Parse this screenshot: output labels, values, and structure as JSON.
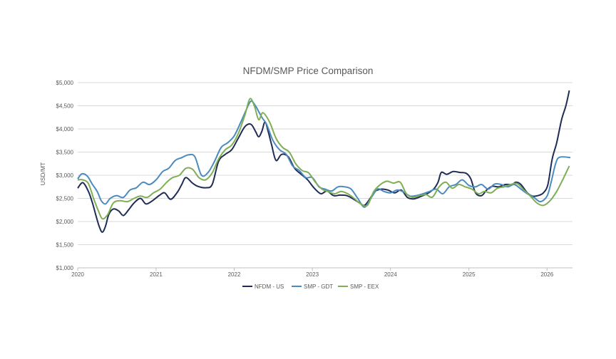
{
  "chart_data": {
    "type": "line",
    "title": "NFDM/SMP Price Comparison",
    "xlabel": "",
    "ylabel": "USD/MT",
    "ylim": [
      1000,
      5000
    ],
    "yticks": [
      1000,
      1500,
      2000,
      2500,
      3000,
      3500,
      4000,
      4500,
      5000
    ],
    "ytick_labels": [
      "$1,000",
      "$1,500",
      "$2,000",
      "$2,500",
      "$3,000",
      "$3,500",
      "$4,000",
      "$4,500",
      "$5,000"
    ],
    "xlim": [
      "2020-01-01",
      "2026-04-30"
    ],
    "xticks": [
      "2020-01-01",
      "2021-01-01",
      "2022-01-01",
      "2023-01-01",
      "2024-01-01",
      "2025-01-01",
      "2026-01-01"
    ],
    "xtick_labels": [
      "2020",
      "2021",
      "2022",
      "2023",
      "2024",
      "2025",
      "2026"
    ],
    "grid": "horizontal",
    "legend": "bottom-center",
    "series": [
      {
        "name": "NFDM - US",
        "color": "#1f2d56",
        "points": [
          [
            "2020-01-01",
            2720
          ],
          [
            "2020-01-25",
            2840
          ],
          [
            "2020-02-20",
            2650
          ],
          [
            "2020-03-10",
            2400
          ],
          [
            "2020-03-25",
            2150
          ],
          [
            "2020-04-10",
            1900
          ],
          [
            "2020-04-25",
            1770
          ],
          [
            "2020-05-10",
            1900
          ],
          [
            "2020-05-25",
            2150
          ],
          [
            "2020-06-15",
            2270
          ],
          [
            "2020-07-10",
            2230
          ],
          [
            "2020-08-01",
            2130
          ],
          [
            "2020-08-25",
            2250
          ],
          [
            "2020-09-20",
            2400
          ],
          [
            "2020-10-20",
            2500
          ],
          [
            "2020-11-15",
            2380
          ],
          [
            "2020-12-15",
            2450
          ],
          [
            "2021-01-15",
            2560
          ],
          [
            "2021-02-10",
            2620
          ],
          [
            "2021-03-10",
            2480
          ],
          [
            "2021-04-10",
            2630
          ],
          [
            "2021-05-01",
            2800
          ],
          [
            "2021-05-20",
            2950
          ],
          [
            "2021-06-20",
            2830
          ],
          [
            "2021-07-15",
            2760
          ],
          [
            "2021-08-20",
            2730
          ],
          [
            "2021-09-20",
            2800
          ],
          [
            "2021-10-20",
            3300
          ],
          [
            "2021-11-20",
            3450
          ],
          [
            "2021-12-20",
            3550
          ],
          [
            "2022-01-20",
            3800
          ],
          [
            "2022-02-20",
            4050
          ],
          [
            "2022-03-20",
            4100
          ],
          [
            "2022-04-10",
            3950
          ],
          [
            "2022-04-25",
            3830
          ],
          [
            "2022-05-10",
            3950
          ],
          [
            "2022-05-25",
            4150
          ],
          [
            "2022-06-10",
            3920
          ],
          [
            "2022-06-25",
            3650
          ],
          [
            "2022-07-15",
            3320
          ],
          [
            "2022-08-10",
            3450
          ],
          [
            "2022-09-10",
            3400
          ],
          [
            "2022-10-10",
            3150
          ],
          [
            "2022-11-10",
            3020
          ],
          [
            "2022-12-10",
            2900
          ],
          [
            "2023-01-10",
            2720
          ],
          [
            "2023-02-10",
            2600
          ],
          [
            "2023-03-10",
            2660
          ],
          [
            "2023-04-10",
            2560
          ],
          [
            "2023-05-10",
            2570
          ],
          [
            "2023-06-10",
            2560
          ],
          [
            "2023-07-10",
            2490
          ],
          [
            "2023-08-10",
            2400
          ],
          [
            "2023-09-01",
            2350
          ],
          [
            "2023-09-25",
            2480
          ],
          [
            "2023-10-20",
            2650
          ],
          [
            "2023-11-20",
            2700
          ],
          [
            "2023-12-20",
            2680
          ],
          [
            "2024-01-20",
            2620
          ],
          [
            "2024-02-20",
            2680
          ],
          [
            "2024-03-20",
            2520
          ],
          [
            "2024-04-20",
            2490
          ],
          [
            "2024-05-20",
            2540
          ],
          [
            "2024-06-20",
            2600
          ],
          [
            "2024-07-20",
            2700
          ],
          [
            "2024-08-10",
            2850
          ],
          [
            "2024-08-25",
            3060
          ],
          [
            "2024-09-20",
            3020
          ],
          [
            "2024-10-20",
            3080
          ],
          [
            "2024-11-20",
            3060
          ],
          [
            "2024-12-20",
            3040
          ],
          [
            "2025-01-10",
            2920
          ],
          [
            "2025-02-01",
            2620
          ],
          [
            "2025-03-01",
            2560
          ],
          [
            "2025-03-25",
            2680
          ],
          [
            "2025-04-20",
            2760
          ],
          [
            "2025-05-20",
            2750
          ],
          [
            "2025-06-20",
            2800
          ],
          [
            "2025-07-20",
            2800
          ],
          [
            "2025-08-10",
            2850
          ],
          [
            "2025-09-01",
            2800
          ],
          [
            "2025-10-01",
            2620
          ],
          [
            "2025-10-25",
            2550
          ],
          [
            "2025-11-20",
            2560
          ],
          [
            "2025-12-15",
            2620
          ],
          [
            "2026-01-05",
            2800
          ],
          [
            "2026-01-25",
            3350
          ],
          [
            "2026-02-15",
            3700
          ],
          [
            "2026-03-10",
            4200
          ],
          [
            "2026-03-30",
            4500
          ],
          [
            "2026-04-15",
            4830
          ]
        ]
      },
      {
        "name": "SMP - GDT",
        "color": "#4a8bbf",
        "points": [
          [
            "2020-01-01",
            2920
          ],
          [
            "2020-01-20",
            3030
          ],
          [
            "2020-02-15",
            2980
          ],
          [
            "2020-03-10",
            2800
          ],
          [
            "2020-04-01",
            2650
          ],
          [
            "2020-04-20",
            2450
          ],
          [
            "2020-05-10",
            2380
          ],
          [
            "2020-06-01",
            2500
          ],
          [
            "2020-07-01",
            2560
          ],
          [
            "2020-08-01",
            2520
          ],
          [
            "2020-09-01",
            2680
          ],
          [
            "2020-10-01",
            2730
          ],
          [
            "2020-11-01",
            2850
          ],
          [
            "2020-12-01",
            2800
          ],
          [
            "2021-01-01",
            2900
          ],
          [
            "2021-02-01",
            3080
          ],
          [
            "2021-03-01",
            3150
          ],
          [
            "2021-04-01",
            3320
          ],
          [
            "2021-05-01",
            3380
          ],
          [
            "2021-06-01",
            3440
          ],
          [
            "2021-07-01",
            3400
          ],
          [
            "2021-08-01",
            3000
          ],
          [
            "2021-09-01",
            3060
          ],
          [
            "2021-10-01",
            3300
          ],
          [
            "2021-11-01",
            3600
          ],
          [
            "2021-12-01",
            3700
          ],
          [
            "2022-01-01",
            3850
          ],
          [
            "2022-02-01",
            4150
          ],
          [
            "2022-02-25",
            4400
          ],
          [
            "2022-03-20",
            4600
          ],
          [
            "2022-04-10",
            4500
          ],
          [
            "2022-05-10",
            4250
          ],
          [
            "2022-06-01",
            4100
          ],
          [
            "2022-07-01",
            3750
          ],
          [
            "2022-08-01",
            3550
          ],
          [
            "2022-09-01",
            3450
          ],
          [
            "2022-10-01",
            3200
          ],
          [
            "2022-11-01",
            3100
          ],
          [
            "2022-12-01",
            2950
          ],
          [
            "2023-01-01",
            2950
          ],
          [
            "2023-02-01",
            2750
          ],
          [
            "2023-03-01",
            2700
          ],
          [
            "2023-04-01",
            2660
          ],
          [
            "2023-05-01",
            2750
          ],
          [
            "2023-06-01",
            2750
          ],
          [
            "2023-07-01",
            2700
          ],
          [
            "2023-08-01",
            2500
          ],
          [
            "2023-09-01",
            2310
          ],
          [
            "2023-10-01",
            2500
          ],
          [
            "2023-11-01",
            2700
          ],
          [
            "2023-12-01",
            2650
          ],
          [
            "2024-01-01",
            2620
          ],
          [
            "2024-02-01",
            2680
          ],
          [
            "2024-03-01",
            2640
          ],
          [
            "2024-04-01",
            2550
          ],
          [
            "2024-05-01",
            2560
          ],
          [
            "2024-06-01",
            2600
          ],
          [
            "2024-07-01",
            2650
          ],
          [
            "2024-08-01",
            2700
          ],
          [
            "2024-09-01",
            2600
          ],
          [
            "2024-10-01",
            2750
          ],
          [
            "2024-11-01",
            2800
          ],
          [
            "2024-12-01",
            2900
          ],
          [
            "2025-01-01",
            2780
          ],
          [
            "2025-02-01",
            2750
          ],
          [
            "2025-03-01",
            2800
          ],
          [
            "2025-04-01",
            2700
          ],
          [
            "2025-05-01",
            2810
          ],
          [
            "2025-06-01",
            2800
          ],
          [
            "2025-07-01",
            2750
          ],
          [
            "2025-08-01",
            2800
          ],
          [
            "2025-09-01",
            2700
          ],
          [
            "2025-10-01",
            2600
          ],
          [
            "2025-11-01",
            2520
          ],
          [
            "2025-12-01",
            2430
          ],
          [
            "2026-01-01",
            2550
          ],
          [
            "2026-01-20",
            2850
          ],
          [
            "2026-02-10",
            3250
          ],
          [
            "2026-03-01",
            3390
          ],
          [
            "2026-04-20",
            3380
          ]
        ]
      },
      {
        "name": "SMP - EEX",
        "color": "#7fae54",
        "points": [
          [
            "2020-01-01",
            2900
          ],
          [
            "2020-01-25",
            2900
          ],
          [
            "2020-02-20",
            2820
          ],
          [
            "2020-03-15",
            2500
          ],
          [
            "2020-04-05",
            2250
          ],
          [
            "2020-04-25",
            2060
          ],
          [
            "2020-05-20",
            2150
          ],
          [
            "2020-06-15",
            2400
          ],
          [
            "2020-07-15",
            2450
          ],
          [
            "2020-08-20",
            2430
          ],
          [
            "2020-09-20",
            2500
          ],
          [
            "2020-10-20",
            2550
          ],
          [
            "2020-11-20",
            2520
          ],
          [
            "2020-12-20",
            2620
          ],
          [
            "2021-01-20",
            2700
          ],
          [
            "2021-02-20",
            2850
          ],
          [
            "2021-03-20",
            2950
          ],
          [
            "2021-04-20",
            3000
          ],
          [
            "2021-05-20",
            3150
          ],
          [
            "2021-06-20",
            3130
          ],
          [
            "2021-07-20",
            2950
          ],
          [
            "2021-08-20",
            2900
          ],
          [
            "2021-09-20",
            3050
          ],
          [
            "2021-10-20",
            3350
          ],
          [
            "2021-11-20",
            3550
          ],
          [
            "2021-12-20",
            3650
          ],
          [
            "2022-01-20",
            3900
          ],
          [
            "2022-02-20",
            4300
          ],
          [
            "2022-03-15",
            4650
          ],
          [
            "2022-04-05",
            4500
          ],
          [
            "2022-04-25",
            4200
          ],
          [
            "2022-05-15",
            4350
          ],
          [
            "2022-06-15",
            4150
          ],
          [
            "2022-07-15",
            3800
          ],
          [
            "2022-08-15",
            3600
          ],
          [
            "2022-09-15",
            3500
          ],
          [
            "2022-10-15",
            3250
          ],
          [
            "2022-11-15",
            3100
          ],
          [
            "2022-12-15",
            3050
          ],
          [
            "2023-01-15",
            2850
          ],
          [
            "2023-02-15",
            2700
          ],
          [
            "2023-03-15",
            2650
          ],
          [
            "2023-04-15",
            2600
          ],
          [
            "2023-05-15",
            2650
          ],
          [
            "2023-06-15",
            2600
          ],
          [
            "2023-07-15",
            2500
          ],
          [
            "2023-08-15",
            2380
          ],
          [
            "2023-09-15",
            2350
          ],
          [
            "2023-10-15",
            2650
          ],
          [
            "2023-11-15",
            2800
          ],
          [
            "2023-12-15",
            2870
          ],
          [
            "2024-01-15",
            2830
          ],
          [
            "2024-02-15",
            2850
          ],
          [
            "2024-03-15",
            2600
          ],
          [
            "2024-04-15",
            2520
          ],
          [
            "2024-05-15",
            2560
          ],
          [
            "2024-06-15",
            2580
          ],
          [
            "2024-07-15",
            2530
          ],
          [
            "2024-08-15",
            2750
          ],
          [
            "2024-09-15",
            2850
          ],
          [
            "2024-10-15",
            2720
          ],
          [
            "2024-11-15",
            2800
          ],
          [
            "2024-12-15",
            2750
          ],
          [
            "2025-01-15",
            2700
          ],
          [
            "2025-02-15",
            2600
          ],
          [
            "2025-03-15",
            2650
          ],
          [
            "2025-04-15",
            2620
          ],
          [
            "2025-05-15",
            2720
          ],
          [
            "2025-06-15",
            2750
          ],
          [
            "2025-07-15",
            2800
          ],
          [
            "2025-08-15",
            2820
          ],
          [
            "2025-09-15",
            2680
          ],
          [
            "2025-10-15",
            2550
          ],
          [
            "2025-11-15",
            2400
          ],
          [
            "2025-12-15",
            2350
          ],
          [
            "2026-01-15",
            2450
          ],
          [
            "2026-02-15",
            2650
          ],
          [
            "2026-03-15",
            2900
          ],
          [
            "2026-04-15",
            3200
          ]
        ]
      }
    ]
  }
}
